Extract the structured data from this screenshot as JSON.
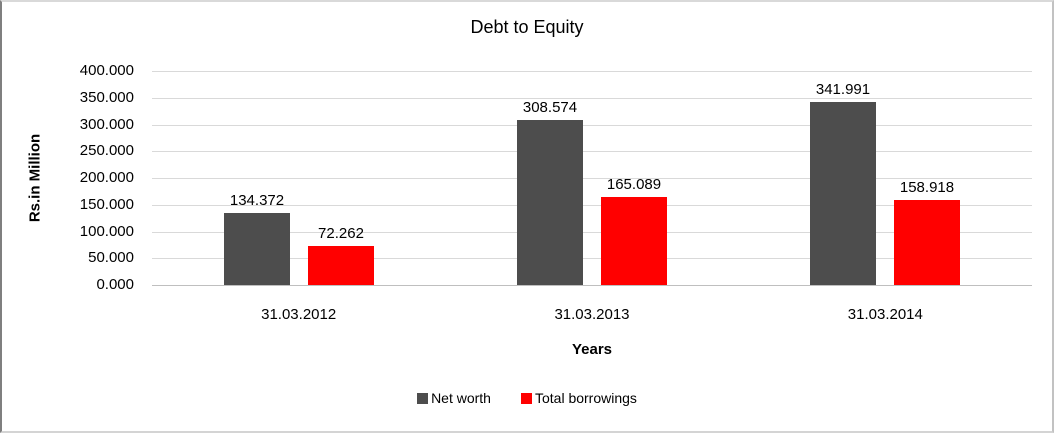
{
  "chart_data": {
    "type": "bar",
    "title": "Debt to Equity",
    "xlabel": "Years",
    "ylabel": "Rs.in Million",
    "categories": [
      "31.03.2012",
      "31.03.2013",
      "31.03.2014"
    ],
    "series": [
      {
        "name": "Net worth",
        "color": "#4d4d4d",
        "values": [
          134.372,
          308.574,
          341.991
        ],
        "labels": [
          "134.372",
          "308.574",
          "341.991"
        ]
      },
      {
        "name": "Total borrowings",
        "color": "#ff0000",
        "values": [
          72.262,
          165.089,
          158.918
        ],
        "labels": [
          "72.262",
          "165.089",
          "158.918"
        ]
      }
    ],
    "ylim": [
      0,
      400
    ],
    "ytick_step": 50,
    "ytick_labels": [
      "400.000",
      "350.000",
      "300.000",
      "250.000",
      "200.000",
      "150.000",
      "100.000",
      "50.000",
      "0.000"
    ],
    "grid": true,
    "legend_position": "bottom",
    "colors": {
      "gridline": "#d9d9d9",
      "axis_line": "#bfbfbf",
      "text": "#000000",
      "background": "#ffffff"
    }
  }
}
